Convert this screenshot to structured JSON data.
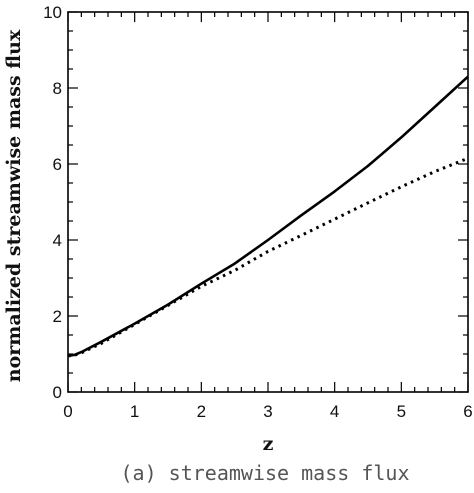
{
  "chart_data": {
    "type": "line",
    "xlabel": "z",
    "ylabel": "normalized streamwise mass flux",
    "caption": "(a) streamwise mass flux",
    "xlim": [
      0,
      6
    ],
    "ylim": [
      0,
      10
    ],
    "x_ticks": [
      0,
      1,
      2,
      3,
      4,
      5,
      6
    ],
    "y_ticks": [
      0,
      2,
      4,
      6,
      8,
      10
    ],
    "grid": false,
    "legend": "none",
    "series": [
      {
        "style": "solid",
        "color": "#000000",
        "x": [
          0,
          0.1,
          0.2,
          0.5,
          1,
          1.5,
          2,
          2.5,
          3,
          3.5,
          4,
          4.5,
          5,
          5.5,
          6
        ],
        "y": [
          0.95,
          0.98,
          1.05,
          1.32,
          1.8,
          2.3,
          2.85,
          3.38,
          4.0,
          4.65,
          5.28,
          5.95,
          6.7,
          7.5,
          8.3
        ]
      },
      {
        "style": "dotted",
        "color": "#000000",
        "x": [
          0,
          0.1,
          0.2,
          0.5,
          1,
          1.5,
          2,
          2.5,
          3,
          3.5,
          4,
          4.5,
          5,
          5.5,
          6
        ],
        "y": [
          0.95,
          0.97,
          1.03,
          1.28,
          1.78,
          2.28,
          2.78,
          3.2,
          3.7,
          4.12,
          4.55,
          4.98,
          5.4,
          5.8,
          6.15
        ]
      }
    ]
  }
}
